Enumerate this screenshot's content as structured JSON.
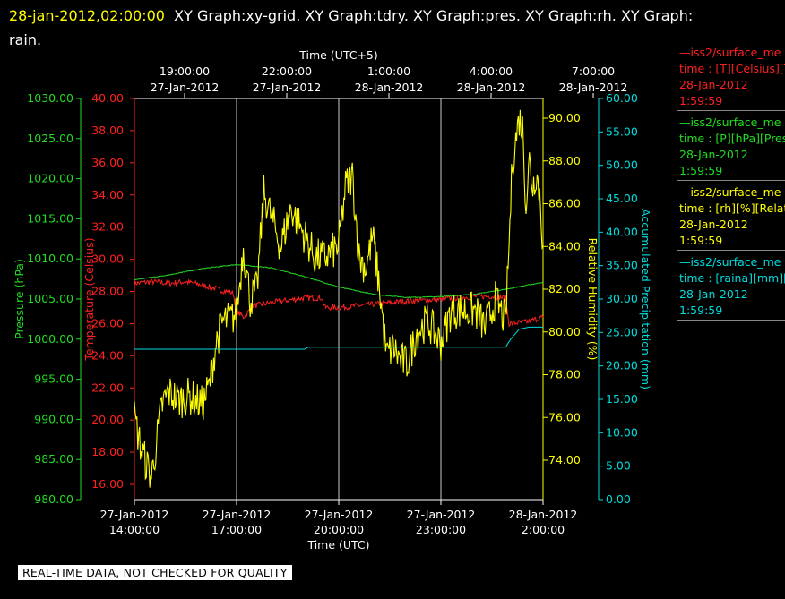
{
  "header": {
    "timestamp": "28-jan-2012,02:00:00",
    "titles": "XY Graph:xy-grid.  XY Graph:tdry.  XY Graph:pres.  XY Graph:rh.  XY Graph:",
    "titles_cont": "rain."
  },
  "banner": "REAL-TIME DATA, NOT CHECKED FOR QUALITY",
  "legend": [
    {
      "line1": "iss2/surface_me",
      "line2": "time : [T][Celsius][T",
      "line3": "28-Jan-2012",
      "line4": "1:59:59",
      "color": "#ff2020"
    },
    {
      "line1": "iss2/surface_me",
      "line2": "time : [P][hPa][Pres",
      "line3": "28-Jan-2012",
      "line4": "1:59:59",
      "color": "#22dd22"
    },
    {
      "line1": "iss2/surface_me",
      "line2": "time : [rh][%][Relati",
      "line3": "28-Jan-2012",
      "line4": "1:59:59",
      "color": "#ffff00"
    },
    {
      "line1": "iss2/surface_me",
      "line2": "time : [raina][mm][A",
      "line3": "28-Jan-2012",
      "line4": "1:59:59",
      "color": "#00dddd"
    }
  ],
  "chart_data": {
    "type": "line",
    "grid": true,
    "x_top": {
      "label": "Time (UTC+5)",
      "ticks": [
        {
          "time": "19:00:00",
          "date": "27-Jan-2012"
        },
        {
          "time": "22:00:00",
          "date": "27-Jan-2012"
        },
        {
          "time": "1:00:00",
          "date": "28-Jan-2012"
        },
        {
          "time": "4:00:00",
          "date": "28-Jan-2012"
        },
        {
          "time": "7:00:00",
          "date": "28-Jan-2012"
        }
      ]
    },
    "x_bottom": {
      "label": "Time (UTC)",
      "range": [
        "2012-01-27 14:00",
        "2012-01-28 02:00"
      ],
      "ticks": [
        {
          "date": "27-Jan-2012",
          "time": "14:00:00"
        },
        {
          "date": "27-Jan-2012",
          "time": "17:00:00"
        },
        {
          "date": "27-Jan-2012",
          "time": "20:00:00"
        },
        {
          "date": "27-Jan-2012",
          "time": "23:00:00"
        },
        {
          "date": "28-Jan-2012",
          "time": "2:00:00"
        }
      ]
    },
    "axes": {
      "pressure": {
        "label": "Pressure (hPa)",
        "color": "#22dd22",
        "range": [
          980,
          1030
        ],
        "ticks": [
          "980.00",
          "985.00",
          "990.00",
          "995.00",
          "1000.00",
          "1005.00",
          "1010.00",
          "1015.00",
          "1020.00",
          "1025.00",
          "1030.00"
        ]
      },
      "temperature": {
        "label": "Temperature (Celsius)",
        "color": "#ff2020",
        "range": [
          15,
          40
        ],
        "ticks": [
          "16.00",
          "18.00",
          "20.00",
          "22.00",
          "24.00",
          "26.00",
          "28.00",
          "30.00",
          "32.00",
          "34.00",
          "36.00",
          "38.00",
          "40.00"
        ]
      },
      "rh": {
        "label": "Relative Humidity (%)",
        "color": "#ffff00",
        "range": [
          72,
          91
        ],
        "ticks": [
          "74.00",
          "76.00",
          "78.00",
          "80.00",
          "82.00",
          "84.00",
          "86.00",
          "88.00",
          "90.00"
        ]
      },
      "precip": {
        "label": "Accumulated Precipitation (mm)",
        "color": "#00dddd",
        "range": [
          0,
          60
        ],
        "ticks": [
          "0.00",
          "5.00",
          "10.00",
          "15.00",
          "20.00",
          "25.00",
          "30.00",
          "35.00",
          "40.00",
          "45.00",
          "50.00",
          "55.00",
          "60.00"
        ]
      }
    },
    "series": [
      {
        "axis": "temperature",
        "x_hours": [
          0,
          0.5,
          1,
          1.5,
          2,
          2.5,
          2.9,
          3.0,
          3.2,
          3.5,
          4,
          5,
          5.5,
          5.6,
          6,
          7,
          8,
          9,
          9.5,
          10,
          10.5,
          10.9,
          11,
          11.5,
          12
        ],
        "values": [
          28.5,
          28.6,
          28.5,
          28.6,
          28.4,
          28.1,
          27.9,
          26.8,
          26.4,
          27.1,
          27.3,
          27.6,
          27.6,
          27.0,
          27.0,
          27.2,
          27.4,
          27.5,
          27.6,
          27.7,
          27.7,
          27.6,
          26.0,
          26.1,
          26.4
        ]
      },
      {
        "axis": "pressure",
        "x_hours": [
          0,
          1,
          2,
          3,
          4,
          5,
          6,
          7,
          8,
          9,
          10,
          11,
          12
        ],
        "values": [
          1007.4,
          1008.0,
          1008.8,
          1009.3,
          1008.9,
          1007.8,
          1006.5,
          1005.6,
          1005.2,
          1005.3,
          1005.6,
          1006.3,
          1007.1
        ]
      },
      {
        "axis": "rh",
        "x_hours": [
          0,
          0.2,
          0.5,
          0.8,
          1,
          1.3,
          1.6,
          2,
          2.2,
          2.4,
          2.6,
          2.8,
          3,
          3.2,
          3.4,
          3.6,
          3.8,
          4,
          4.3,
          4.6,
          5,
          5.3,
          5.6,
          6,
          6.2,
          6.4,
          6.6,
          6.8,
          7,
          7.2,
          7.4,
          7.6,
          7.8,
          8,
          8.3,
          8.6,
          9,
          9.3,
          9.6,
          10,
          10.3,
          10.6,
          10.9,
          11,
          11.1,
          11.3,
          11.4,
          11.5,
          11.6,
          11.7,
          11.8,
          11.9,
          12
        ],
        "values": [
          76,
          74.5,
          73.2,
          76.5,
          77.2,
          76.8,
          77,
          76.6,
          77.5,
          79.5,
          80.5,
          80.6,
          80.8,
          84,
          81.5,
          82,
          86.5,
          85.5,
          84,
          85.8,
          84.5,
          83.5,
          83.5,
          84,
          86.8,
          87.3,
          83.5,
          83,
          84.5,
          82,
          78.9,
          79.3,
          78.7,
          78.5,
          80,
          80.5,
          79.5,
          81,
          81,
          81,
          80.2,
          81.5,
          80.5,
          84,
          88,
          90,
          89.5,
          86,
          88,
          86.8,
          87.5,
          86.5,
          84
        ]
      },
      {
        "axis": "precip",
        "x_hours": [
          0,
          2,
          5,
          5.1,
          7,
          10.9,
          11.05,
          11.3,
          11.6,
          12
        ],
        "values": [
          22.5,
          22.5,
          22.5,
          22.8,
          22.8,
          22.8,
          24,
          25.5,
          25.8,
          25.8
        ]
      }
    ]
  }
}
